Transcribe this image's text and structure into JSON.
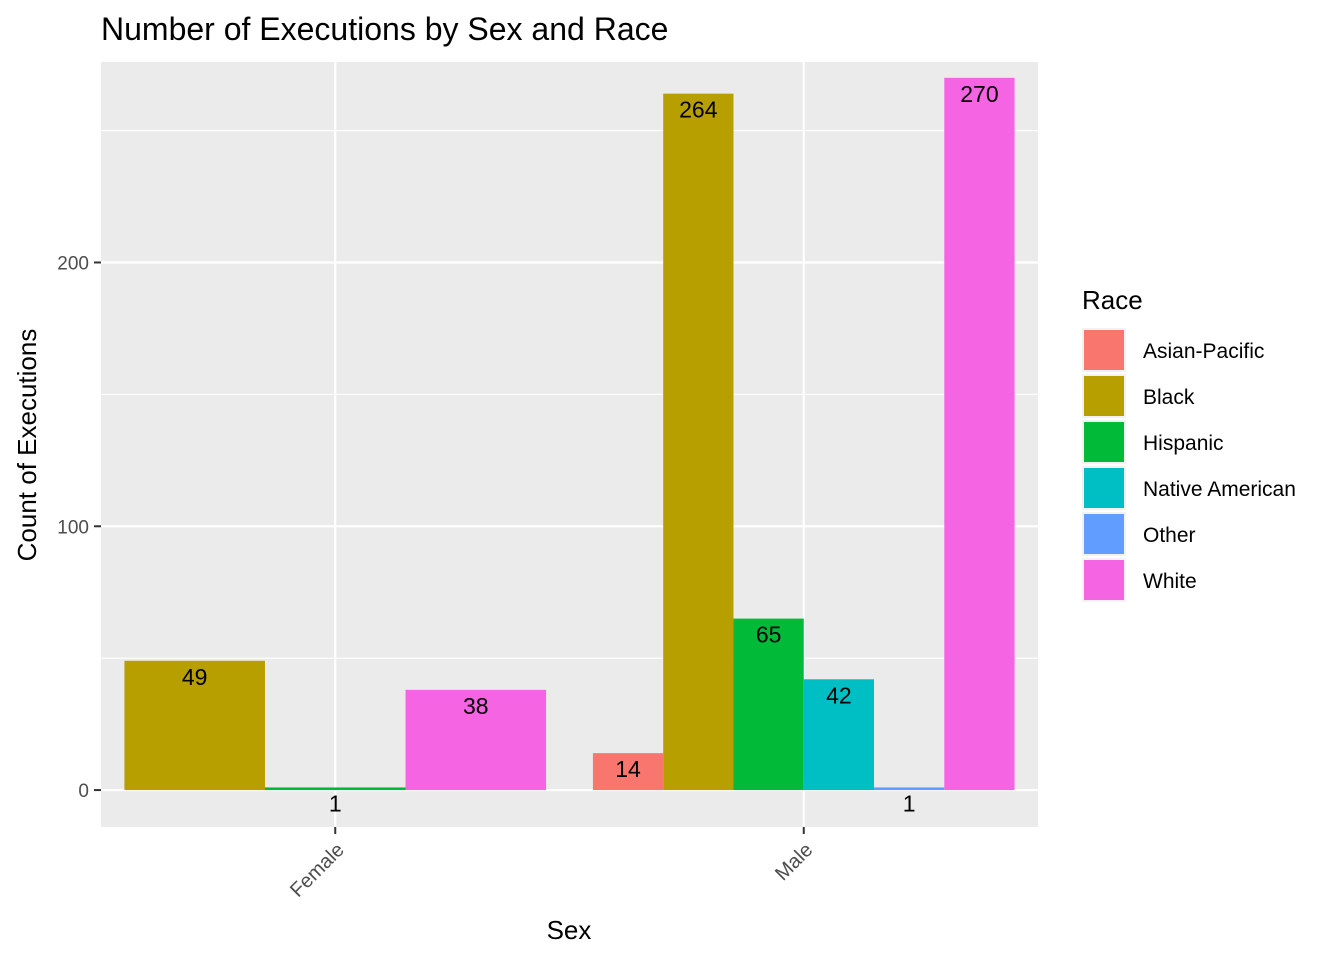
{
  "chart_data": {
    "type": "bar",
    "title": "Number of Executions by Sex and Race",
    "xlabel": "Sex",
    "ylabel": "Count of Executions",
    "categories": [
      "Female",
      "Male"
    ],
    "ylim": [
      -14,
      276
    ],
    "yticks": [
      0,
      100,
      200
    ],
    "grid": true,
    "legend_position": "right",
    "legend_title": "Race",
    "series": [
      {
        "name": "Asian-Pacific",
        "color": "#F8766D",
        "values": [
          null,
          14
        ]
      },
      {
        "name": "Black",
        "color": "#B79F00",
        "values": [
          49,
          264
        ]
      },
      {
        "name": "Hispanic",
        "color": "#00BA38",
        "values": [
          1,
          65
        ]
      },
      {
        "name": "Native American",
        "color": "#00BFC4",
        "values": [
          null,
          42
        ]
      },
      {
        "name": "Other",
        "color": "#619CFF",
        "values": [
          null,
          1
        ]
      },
      {
        "name": "White",
        "color": "#F564E3",
        "values": [
          38,
          270
        ]
      }
    ]
  }
}
